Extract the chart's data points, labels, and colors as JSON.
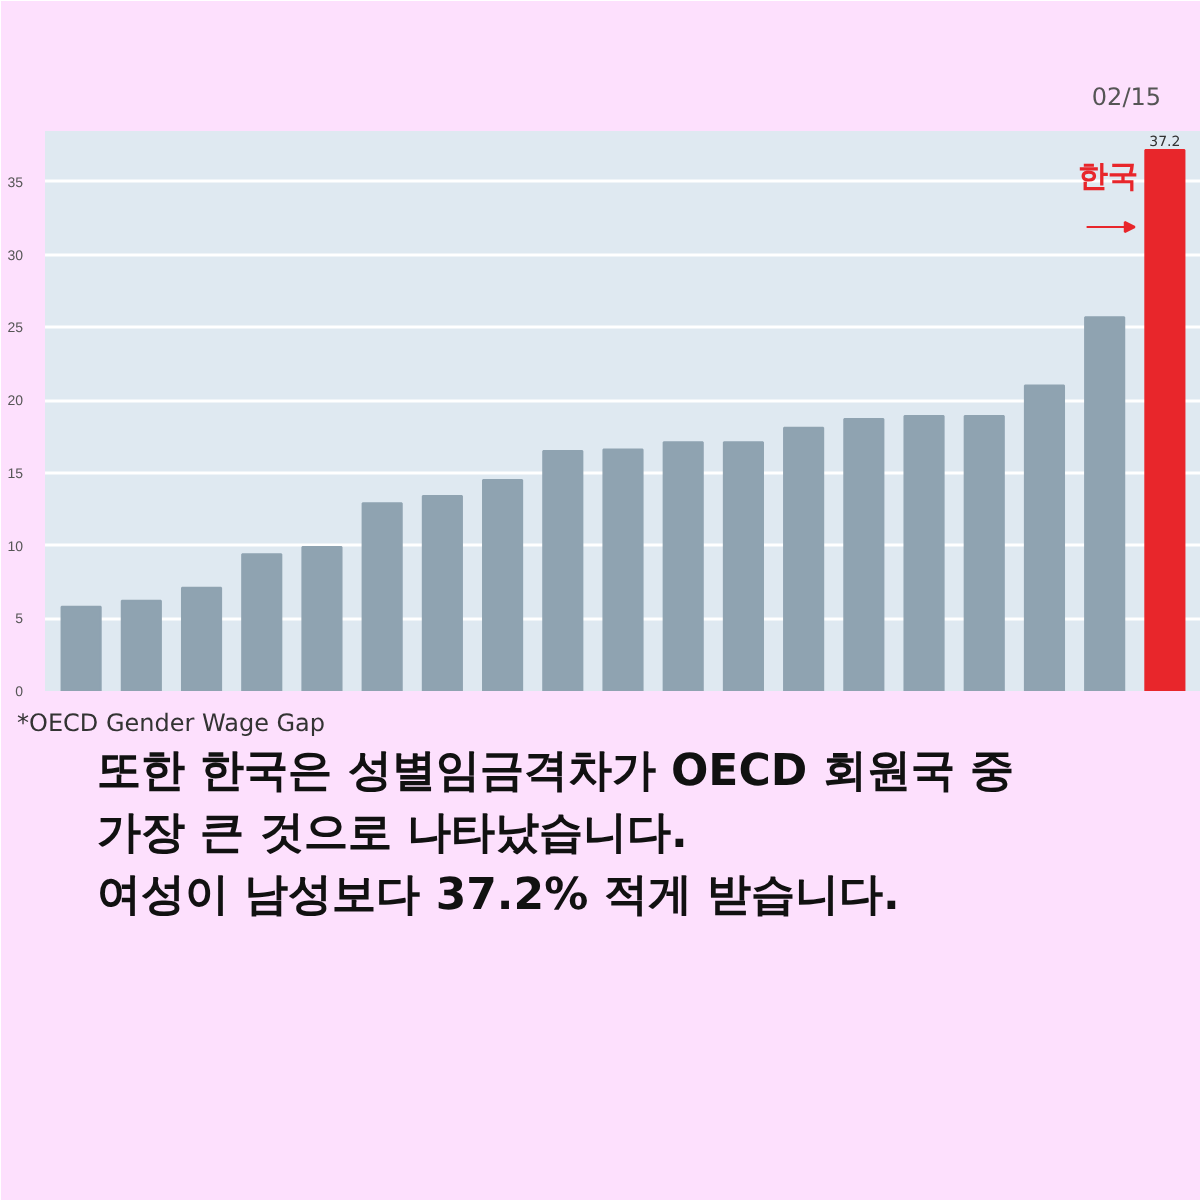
{
  "chart_data": {
    "type": "bar",
    "categories": [
      null,
      null,
      null,
      null,
      null,
      null,
      null,
      null,
      null,
      null,
      null,
      null,
      null,
      null,
      null,
      null,
      null,
      null,
      null
    ],
    "values": [
      5.8,
      6.2,
      7.1,
      9.4,
      9.9,
      12.9,
      13.4,
      14.5,
      16.5,
      16.6,
      17.1,
      17.1,
      18.1,
      18.7,
      18.9,
      18.9,
      21.0,
      25.7,
      37.2
    ],
    "colors": [
      "#8fa3b1",
      "#8fa3b1",
      "#8fa3b1",
      "#8fa3b1",
      "#8fa3b1",
      "#8fa3b1",
      "#8fa3b1",
      "#8fa3b1",
      "#8fa3b1",
      "#8fa3b1",
      "#8fa3b1",
      "#8fa3b1",
      "#8fa3b1",
      "#8fa3b1",
      "#8fa3b1",
      "#8fa3b1",
      "#8fa3b1",
      "#8fa3b1",
      "#e8262b"
    ],
    "value_labels": [
      null,
      null,
      null,
      null,
      null,
      null,
      null,
      null,
      null,
      null,
      null,
      null,
      null,
      null,
      null,
      null,
      null,
      null,
      "37.2"
    ],
    "ylim": [
      0,
      38.5
    ],
    "yticks": [
      0,
      5,
      10,
      15,
      20,
      25,
      30,
      35
    ],
    "grid": "y",
    "annotations": [
      "한국",
      "02/15",
      "*OECD Gender Wage Gap",
      "또한 한국은 성별임금격차가 OECD 회원국 중",
      "가장 큰 것으로 나타났습니다.",
      "여성이 남성보다 37.2% 적게 받습니다."
    ]
  }
}
